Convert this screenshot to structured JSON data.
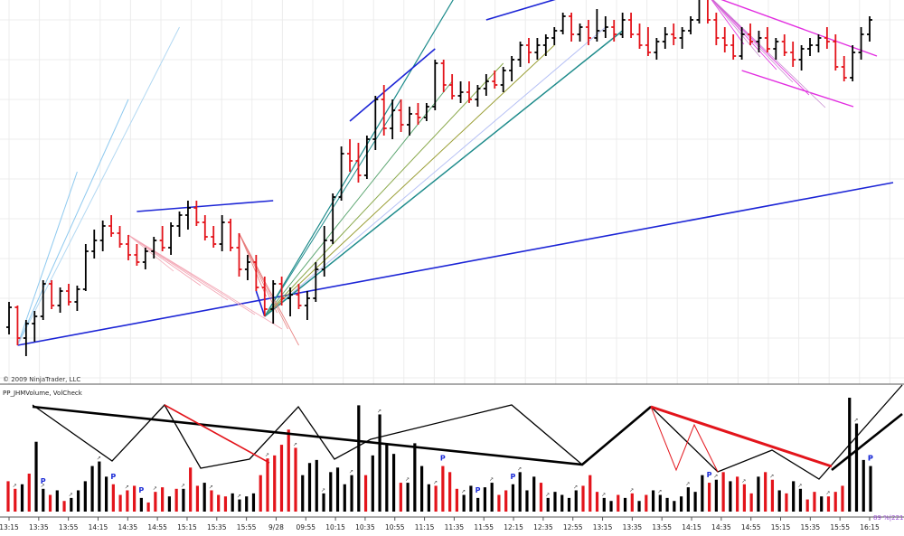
{
  "chart_data": {
    "type": "bar",
    "copyright": "© 2009 NinjaTrader, LLC",
    "indicator_label": "PP_JHMVolume, VolCheck",
    "readout": "89 %|221",
    "pivot_marker": "P",
    "volume_marker": "↗",
    "time_ticks": [
      "13:15",
      "13:35",
      "13:55",
      "14:15",
      "14:35",
      "14:55",
      "15:15",
      "15:35",
      "15:55",
      "9/28",
      "09:55",
      "10:15",
      "10:35",
      "10:55",
      "11:15",
      "11:35",
      "11:55",
      "12:15",
      "12:35",
      "12:55",
      "13:15",
      "13:35",
      "13:55",
      "14:15",
      "14:35",
      "14:55",
      "15:15",
      "15:35",
      "15:55",
      "16:15"
    ],
    "price_bars": [
      {
        "o": 24,
        "h": 38,
        "l": 20,
        "c": 35
      },
      {
        "o": 35,
        "h": 36,
        "l": 14,
        "c": 18
      },
      {
        "o": 18,
        "h": 28,
        "l": 8,
        "c": 26
      },
      {
        "o": 26,
        "h": 33,
        "l": 16,
        "c": 30
      },
      {
        "o": 30,
        "h": 50,
        "l": 28,
        "c": 48
      },
      {
        "o": 48,
        "h": 50,
        "l": 34,
        "c": 36
      },
      {
        "o": 36,
        "h": 46,
        "l": 32,
        "c": 44
      },
      {
        "o": 44,
        "h": 48,
        "l": 36,
        "c": 38
      },
      {
        "o": 38,
        "h": 47,
        "l": 33,
        "c": 45
      },
      {
        "o": 45,
        "h": 70,
        "l": 44,
        "c": 66
      },
      {
        "o": 66,
        "h": 78,
        "l": 62,
        "c": 72
      },
      {
        "o": 72,
        "h": 83,
        "l": 66,
        "c": 80
      },
      {
        "o": 80,
        "h": 86,
        "l": 74,
        "c": 76
      },
      {
        "o": 76,
        "h": 80,
        "l": 68,
        "c": 70
      },
      {
        "o": 70,
        "h": 75,
        "l": 61,
        "c": 64
      },
      {
        "o": 64,
        "h": 70,
        "l": 58,
        "c": 60
      },
      {
        "o": 60,
        "h": 68,
        "l": 56,
        "c": 66
      },
      {
        "o": 66,
        "h": 74,
        "l": 62,
        "c": 72
      },
      {
        "o": 72,
        "h": 80,
        "l": 66,
        "c": 68
      },
      {
        "o": 68,
        "h": 82,
        "l": 64,
        "c": 80
      },
      {
        "o": 80,
        "h": 88,
        "l": 74,
        "c": 86
      },
      {
        "o": 86,
        "h": 94,
        "l": 78,
        "c": 90
      },
      {
        "o": 90,
        "h": 94,
        "l": 80,
        "c": 82
      },
      {
        "o": 82,
        "h": 86,
        "l": 72,
        "c": 74
      },
      {
        "o": 74,
        "h": 80,
        "l": 68,
        "c": 70
      },
      {
        "o": 70,
        "h": 86,
        "l": 66,
        "c": 82
      },
      {
        "o": 82,
        "h": 84,
        "l": 66,
        "c": 68
      },
      {
        "o": 68,
        "h": 76,
        "l": 52,
        "c": 56
      },
      {
        "o": 56,
        "h": 64,
        "l": 50,
        "c": 60
      },
      {
        "o": 60,
        "h": 64,
        "l": 44,
        "c": 46
      },
      {
        "o": 46,
        "h": 52,
        "l": 30,
        "c": 34
      },
      {
        "o": 34,
        "h": 50,
        "l": 26,
        "c": 48
      },
      {
        "o": 48,
        "h": 52,
        "l": 36,
        "c": 40
      },
      {
        "o": 40,
        "h": 46,
        "l": 30,
        "c": 42
      },
      {
        "o": 42,
        "h": 48,
        "l": 34,
        "c": 36
      },
      {
        "o": 36,
        "h": 44,
        "l": 28,
        "c": 40
      },
      {
        "o": 40,
        "h": 60,
        "l": 38,
        "c": 56
      },
      {
        "o": 56,
        "h": 80,
        "l": 52,
        "c": 72
      },
      {
        "o": 72,
        "h": 98,
        "l": 70,
        "c": 96
      },
      {
        "o": 96,
        "h": 124,
        "l": 94,
        "c": 120
      },
      {
        "o": 120,
        "h": 128,
        "l": 110,
        "c": 116
      },
      {
        "o": 116,
        "h": 126,
        "l": 104,
        "c": 108
      },
      {
        "o": 108,
        "h": 130,
        "l": 106,
        "c": 128
      },
      {
        "o": 128,
        "h": 152,
        "l": 122,
        "c": 150
      },
      {
        "o": 150,
        "h": 158,
        "l": 130,
        "c": 134
      },
      {
        "o": 134,
        "h": 150,
        "l": 128,
        "c": 144
      },
      {
        "o": 144,
        "h": 150,
        "l": 132,
        "c": 136
      },
      {
        "o": 136,
        "h": 146,
        "l": 130,
        "c": 142
      },
      {
        "o": 142,
        "h": 148,
        "l": 136,
        "c": 140
      },
      {
        "o": 140,
        "h": 148,
        "l": 138,
        "c": 146
      },
      {
        "o": 146,
        "h": 172,
        "l": 144,
        "c": 170
      },
      {
        "o": 170,
        "h": 172,
        "l": 154,
        "c": 158
      },
      {
        "o": 158,
        "h": 164,
        "l": 150,
        "c": 152
      },
      {
        "o": 152,
        "h": 160,
        "l": 148,
        "c": 154
      },
      {
        "o": 154,
        "h": 160,
        "l": 148,
        "c": 150
      },
      {
        "o": 150,
        "h": 158,
        "l": 146,
        "c": 156
      },
      {
        "o": 156,
        "h": 164,
        "l": 152,
        "c": 160
      },
      {
        "o": 160,
        "h": 166,
        "l": 156,
        "c": 158
      },
      {
        "o": 158,
        "h": 168,
        "l": 154,
        "c": 166
      },
      {
        "o": 166,
        "h": 174,
        "l": 160,
        "c": 172
      },
      {
        "o": 172,
        "h": 182,
        "l": 168,
        "c": 180
      },
      {
        "o": 180,
        "h": 184,
        "l": 170,
        "c": 176
      },
      {
        "o": 176,
        "h": 184,
        "l": 172,
        "c": 180
      },
      {
        "o": 180,
        "h": 186,
        "l": 174,
        "c": 184
      },
      {
        "o": 184,
        "h": 190,
        "l": 180,
        "c": 188
      },
      {
        "o": 188,
        "h": 198,
        "l": 186,
        "c": 196
      },
      {
        "o": 196,
        "h": 198,
        "l": 182,
        "c": 186
      },
      {
        "o": 186,
        "h": 192,
        "l": 182,
        "c": 190
      },
      {
        "o": 190,
        "h": 194,
        "l": 180,
        "c": 184
      },
      {
        "o": 184,
        "h": 200,
        "l": 182,
        "c": 188
      },
      {
        "o": 188,
        "h": 196,
        "l": 184,
        "c": 190
      },
      {
        "o": 190,
        "h": 194,
        "l": 182,
        "c": 186
      },
      {
        "o": 186,
        "h": 198,
        "l": 184,
        "c": 194
      },
      {
        "o": 194,
        "h": 198,
        "l": 184,
        "c": 186
      },
      {
        "o": 186,
        "h": 192,
        "l": 178,
        "c": 180
      },
      {
        "o": 180,
        "h": 190,
        "l": 174,
        "c": 176
      },
      {
        "o": 176,
        "h": 184,
        "l": 172,
        "c": 182
      },
      {
        "o": 182,
        "h": 190,
        "l": 178,
        "c": 186
      },
      {
        "o": 186,
        "h": 192,
        "l": 180,
        "c": 184
      },
      {
        "o": 184,
        "h": 190,
        "l": 178,
        "c": 188
      },
      {
        "o": 188,
        "h": 196,
        "l": 186,
        "c": 194
      },
      {
        "o": 194,
        "h": 208,
        "l": 192,
        "c": 206
      },
      {
        "o": 206,
        "h": 208,
        "l": 192,
        "c": 194
      },
      {
        "o": 194,
        "h": 198,
        "l": 180,
        "c": 184
      },
      {
        "o": 184,
        "h": 190,
        "l": 176,
        "c": 180
      },
      {
        "o": 180,
        "h": 186,
        "l": 172,
        "c": 174
      },
      {
        "o": 174,
        "h": 190,
        "l": 172,
        "c": 186
      },
      {
        "o": 186,
        "h": 192,
        "l": 180,
        "c": 182
      },
      {
        "o": 182,
        "h": 188,
        "l": 176,
        "c": 184
      },
      {
        "o": 184,
        "h": 190,
        "l": 176,
        "c": 178
      },
      {
        "o": 178,
        "h": 184,
        "l": 172,
        "c": 182
      },
      {
        "o": 182,
        "h": 186,
        "l": 174,
        "c": 176
      },
      {
        "o": 176,
        "h": 182,
        "l": 168,
        "c": 172
      },
      {
        "o": 172,
        "h": 180,
        "l": 166,
        "c": 178
      },
      {
        "o": 178,
        "h": 184,
        "l": 174,
        "c": 180
      },
      {
        "o": 180,
        "h": 186,
        "l": 176,
        "c": 184
      },
      {
        "o": 184,
        "h": 190,
        "l": 178,
        "c": 182
      },
      {
        "o": 182,
        "h": 186,
        "l": 166,
        "c": 168
      },
      {
        "o": 168,
        "h": 174,
        "l": 160,
        "c": 162
      },
      {
        "o": 162,
        "h": 180,
        "l": 160,
        "c": 176
      },
      {
        "o": 176,
        "h": 190,
        "l": 172,
        "c": 186
      },
      {
        "o": 186,
        "h": 196,
        "l": 182,
        "c": 194
      }
    ],
    "volume_bars": [
      {
        "v": 40,
        "up": false
      },
      {
        "v": 30,
        "up": false
      },
      {
        "v": 36,
        "up": true
      },
      {
        "v": 50,
        "up": false
      },
      {
        "v": 92,
        "up": true
      },
      {
        "v": 30,
        "up": true
      },
      {
        "v": 22,
        "up": false
      },
      {
        "v": 28,
        "up": true
      },
      {
        "v": 14,
        "up": false
      },
      {
        "v": 18,
        "up": true
      },
      {
        "v": 28,
        "up": true
      },
      {
        "v": 40,
        "up": true
      },
      {
        "v": 60,
        "up": true
      },
      {
        "v": 66,
        "up": true
      },
      {
        "v": 46,
        "up": true
      },
      {
        "v": 36,
        "up": false
      },
      {
        "v": 22,
        "up": false
      },
      {
        "v": 28,
        "up": false
      },
      {
        "v": 34,
        "up": false
      },
      {
        "v": 18,
        "up": true
      },
      {
        "v": 12,
        "up": false
      },
      {
        "v": 26,
        "up": false
      },
      {
        "v": 32,
        "up": false
      },
      {
        "v": 20,
        "up": true
      },
      {
        "v": 30,
        "up": false
      },
      {
        "v": 30,
        "up": true
      },
      {
        "v": 58,
        "up": false
      },
      {
        "v": 34,
        "up": false
      },
      {
        "v": 38,
        "up": true
      },
      {
        "v": 28,
        "up": false
      },
      {
        "v": 22,
        "up": false
      },
      {
        "v": 20,
        "up": false
      },
      {
        "v": 24,
        "up": true
      },
      {
        "v": 16,
        "up": true
      },
      {
        "v": 20,
        "up": true
      },
      {
        "v": 24,
        "up": true
      },
      {
        "v": 48,
        "up": false
      },
      {
        "v": 70,
        "up": false
      },
      {
        "v": 74,
        "up": false
      },
      {
        "v": 88,
        "up": false
      },
      {
        "v": 108,
        "up": false
      },
      {
        "v": 84,
        "up": false
      },
      {
        "v": 48,
        "up": true
      },
      {
        "v": 64,
        "up": true
      },
      {
        "v": 68,
        "up": true
      },
      {
        "v": 24,
        "up": true
      },
      {
        "v": 52,
        "up": true
      },
      {
        "v": 58,
        "up": true
      },
      {
        "v": 36,
        "up": true
      },
      {
        "v": 48,
        "up": true
      },
      {
        "v": 140,
        "up": true
      },
      {
        "v": 48,
        "up": false
      },
      {
        "v": 74,
        "up": true
      },
      {
        "v": 128,
        "up": true
      },
      {
        "v": 90,
        "up": true
      },
      {
        "v": 76,
        "up": true
      },
      {
        "v": 38,
        "up": false
      },
      {
        "v": 38,
        "up": true
      },
      {
        "v": 90,
        "up": true
      },
      {
        "v": 60,
        "up": true
      },
      {
        "v": 36,
        "up": true
      },
      {
        "v": 34,
        "up": false
      },
      {
        "v": 60,
        "up": false
      },
      {
        "v": 52,
        "up": false
      },
      {
        "v": 30,
        "up": false
      },
      {
        "v": 22,
        "up": true
      },
      {
        "v": 34,
        "up": true
      },
      {
        "v": 18,
        "up": true
      },
      {
        "v": 32,
        "up": true
      },
      {
        "v": 38,
        "up": true
      },
      {
        "v": 22,
        "up": false
      },
      {
        "v": 28,
        "up": false
      },
      {
        "v": 36,
        "up": true
      },
      {
        "v": 52,
        "up": true
      },
      {
        "v": 28,
        "up": true
      },
      {
        "v": 46,
        "up": true
      },
      {
        "v": 38,
        "up": false
      },
      {
        "v": 18,
        "up": true
      },
      {
        "v": 26,
        "up": true
      },
      {
        "v": 22,
        "up": true
      },
      {
        "v": 18,
        "up": true
      },
      {
        "v": 28,
        "up": true
      },
      {
        "v": 34,
        "up": false
      },
      {
        "v": 48,
        "up": false
      },
      {
        "v": 26,
        "up": false
      },
      {
        "v": 18,
        "up": true
      },
      {
        "v": 14,
        "up": true
      },
      {
        "v": 22,
        "up": false
      },
      {
        "v": 18,
        "up": true
      },
      {
        "v": 24,
        "up": false
      },
      {
        "v": 14,
        "up": true
      },
      {
        "v": 22,
        "up": false
      },
      {
        "v": 28,
        "up": true
      },
      {
        "v": 22,
        "up": true
      },
      {
        "v": 18,
        "up": true
      },
      {
        "v": 14,
        "up": true
      },
      {
        "v": 20,
        "up": true
      },
      {
        "v": 32,
        "up": true
      },
      {
        "v": 26,
        "up": true
      },
      {
        "v": 48,
        "up": true
      },
      {
        "v": 38,
        "up": false
      },
      {
        "v": 42,
        "up": true
      },
      {
        "v": 52,
        "up": false
      },
      {
        "v": 40,
        "up": true
      },
      {
        "v": 46,
        "up": false
      },
      {
        "v": 36,
        "up": false
      },
      {
        "v": 24,
        "up": false
      },
      {
        "v": 46,
        "up": true
      },
      {
        "v": 52,
        "up": false
      },
      {
        "v": 42,
        "up": false
      },
      {
        "v": 28,
        "up": true
      },
      {
        "v": 24,
        "up": false
      },
      {
        "v": 40,
        "up": true
      },
      {
        "v": 30,
        "up": true
      },
      {
        "v": 16,
        "up": false
      },
      {
        "v": 26,
        "up": false
      },
      {
        "v": 20,
        "up": true
      },
      {
        "v": 20,
        "up": false
      },
      {
        "v": 26,
        "up": false
      },
      {
        "v": 34,
        "up": false
      },
      {
        "v": 150,
        "up": true
      },
      {
        "v": 116,
        "up": true
      },
      {
        "v": 68,
        "up": true
      },
      {
        "v": 60,
        "up": true
      }
    ],
    "pivot_bars": [
      4,
      12,
      15,
      49,
      53,
      57,
      79,
      108,
      117
    ],
    "colors": {
      "up_bar": "#000000",
      "down_bar": "#e3141b",
      "gridline": "#ececec",
      "trendline_blue": "#1c25d6",
      "fan_teal": "#1d8b8b",
      "magenta": "#e22ce0",
      "volcheck_up": "#000000",
      "volcheck_down": "#e3141b",
      "pivot": "#1b2bd6"
    }
  }
}
